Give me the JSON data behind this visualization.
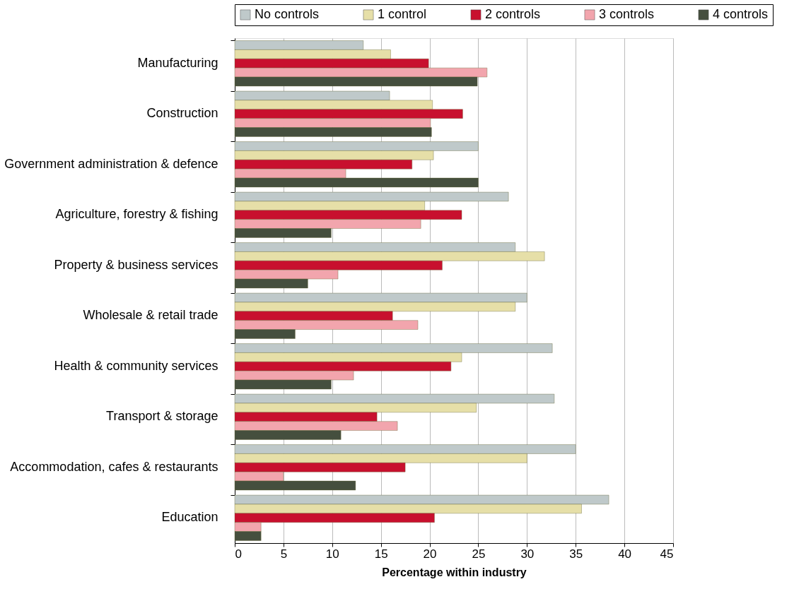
{
  "chart_data": {
    "type": "bar",
    "orientation": "horizontal",
    "xlabel": "Percentage within industry",
    "categories": [
      "Manufacturing",
      "Construction",
      "Government administration & defence",
      "Agriculture, forestry & fishing",
      "Property & business services",
      "Wholesale & retail trade",
      "Health & community services",
      "Transport & storage",
      "Accommodation, cafes & restaurants",
      "Education"
    ],
    "series": [
      {
        "name": "No controls",
        "color": "#bfc9ca",
        "values": [
          13.2,
          15.9,
          25.0,
          28.1,
          28.8,
          30.0,
          32.6,
          32.8,
          35.0,
          38.4
        ]
      },
      {
        "name": "1 control",
        "color": "#e6dfa8",
        "values": [
          16.0,
          20.3,
          20.4,
          19.5,
          31.8,
          28.8,
          23.3,
          24.8,
          30.0,
          35.6
        ]
      },
      {
        "name": "2 controls",
        "color": "#c8102e",
        "values": [
          19.9,
          23.4,
          18.2,
          23.3,
          21.3,
          16.2,
          22.2,
          14.6,
          17.5,
          20.5
        ]
      },
      {
        "name": "3 controls",
        "color": "#f2a5ad",
        "values": [
          25.9,
          20.1,
          11.4,
          19.1,
          10.6,
          18.8,
          12.2,
          16.7,
          5.0,
          2.7
        ]
      },
      {
        "name": "4 controls",
        "color": "#454f3e",
        "values": [
          24.9,
          20.2,
          25.0,
          9.9,
          7.5,
          6.2,
          9.9,
          10.9,
          12.4,
          2.7
        ]
      }
    ],
    "xlim": [
      0,
      45
    ],
    "xticks": [
      0,
      5,
      10,
      15,
      20,
      25,
      30,
      35,
      40,
      45
    ],
    "grid": "x",
    "legend": "top"
  }
}
